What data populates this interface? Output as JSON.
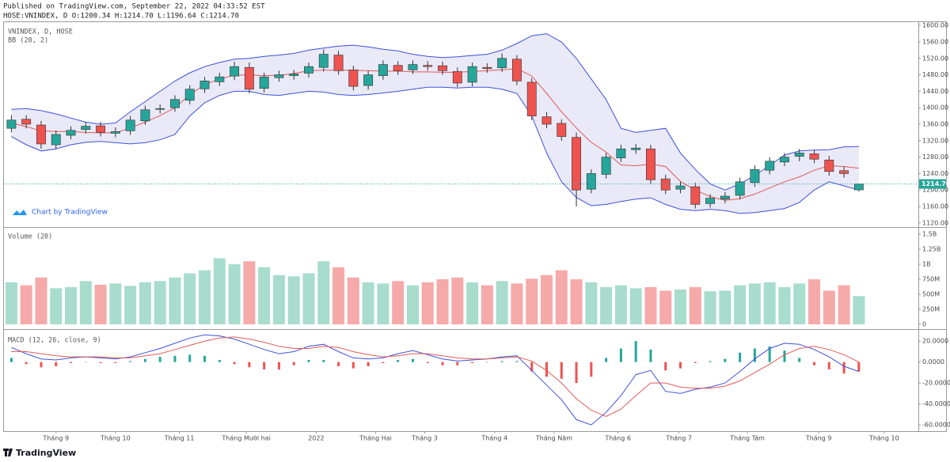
{
  "header": {
    "published": "Published on TradingView.com, September 22, 2022 04:33:52 EST",
    "symbol_line": "HOSE:VNINDEX, D O:1200.34 H:1214.70 L:1196.64 C:1214.70",
    "watermark": "Chart by TradingView",
    "footer": "TradingView"
  },
  "chart_data": [
    {
      "type": "candlestick",
      "legend": [
        "VNINDEX, D, HOSE",
        "BB (20, 2)"
      ],
      "up_color": "#26a69a",
      "down_color": "#ef5350",
      "open": [
        1350,
        1372,
        1358,
        1310,
        1333,
        1347,
        1356,
        1338,
        1344,
        1368,
        1396,
        1400,
        1418,
        1446,
        1463,
        1477,
        1498,
        1447,
        1473,
        1478,
        1484,
        1498,
        1528,
        1492,
        1454,
        1478,
        1503,
        1492,
        1503,
        1502,
        1488,
        1462,
        1498,
        1497,
        1518,
        1462,
        1378,
        1362,
        1328,
        1202,
        1238,
        1278,
        1298,
        1300,
        1227,
        1202,
        1208,
        1167,
        1178,
        1187,
        1218,
        1248,
        1268,
        1282,
        1288,
        1273,
        1247,
        1200.34
      ],
      "high": [
        1382,
        1382,
        1368,
        1345,
        1355,
        1365,
        1366,
        1352,
        1380,
        1405,
        1408,
        1430,
        1455,
        1475,
        1485,
        1512,
        1510,
        1485,
        1490,
        1492,
        1510,
        1542,
        1538,
        1502,
        1490,
        1515,
        1513,
        1515,
        1513,
        1512,
        1498,
        1510,
        1508,
        1532,
        1528,
        1472,
        1390,
        1372,
        1340,
        1250,
        1290,
        1310,
        1312,
        1310,
        1237,
        1220,
        1218,
        1190,
        1195,
        1230,
        1260,
        1280,
        1290,
        1300,
        1298,
        1283,
        1257,
        1214.7
      ],
      "low": [
        1340,
        1350,
        1300,
        1300,
        1323,
        1337,
        1330,
        1328,
        1334,
        1358,
        1386,
        1390,
        1408,
        1436,
        1453,
        1467,
        1435,
        1437,
        1463,
        1468,
        1474,
        1488,
        1480,
        1442,
        1444,
        1468,
        1480,
        1482,
        1490,
        1480,
        1450,
        1452,
        1485,
        1487,
        1455,
        1370,
        1350,
        1320,
        1160,
        1192,
        1228,
        1268,
        1288,
        1215,
        1190,
        1192,
        1155,
        1157,
        1168,
        1177,
        1208,
        1238,
        1258,
        1270,
        1265,
        1235,
        1230,
        1196.64
      ],
      "close": [
        1370,
        1360,
        1312,
        1335,
        1345,
        1355,
        1340,
        1342,
        1370,
        1395,
        1398,
        1420,
        1445,
        1465,
        1475,
        1500,
        1445,
        1475,
        1480,
        1482,
        1500,
        1530,
        1490,
        1452,
        1480,
        1505,
        1490,
        1505,
        1500,
        1490,
        1460,
        1500,
        1495,
        1520,
        1465,
        1380,
        1360,
        1330,
        1200,
        1240,
        1280,
        1300,
        1302,
        1225,
        1200,
        1210,
        1165,
        1180,
        1185,
        1220,
        1250,
        1270,
        1280,
        1290,
        1275,
        1245,
        1240,
        1214.7
      ],
      "bands": {
        "line_color": "#3f51d8",
        "middle_color": "#e05a5a",
        "fill_color": "#e3e3f5",
        "upper": [
          1396,
          1398,
          1393,
          1385,
          1375,
          1365,
          1360,
          1363,
          1390,
          1415,
          1440,
          1465,
          1485,
          1500,
          1510,
          1518,
          1520,
          1525,
          1528,
          1532,
          1540,
          1545,
          1550,
          1552,
          1548,
          1542,
          1538,
          1530,
          1525,
          1522,
          1524,
          1527,
          1530,
          1540,
          1556,
          1575,
          1580,
          1560,
          1520,
          1470,
          1420,
          1350,
          1340,
          1345,
          1350,
          1290,
          1250,
          1215,
          1200,
          1215,
          1235,
          1260,
          1285,
          1295,
          1297,
          1298,
          1305,
          1306
        ],
        "middle": [
          1363,
          1354,
          1344,
          1342,
          1342,
          1340,
          1339,
          1339,
          1351,
          1365,
          1381,
          1400,
          1432,
          1456,
          1470,
          1479,
          1480,
          1478,
          1479,
          1483,
          1490,
          1491,
          1491,
          1491,
          1490,
          1489,
          1489,
          1487,
          1487,
          1486,
          1486,
          1488,
          1490,
          1492,
          1495,
          1477,
          1435,
          1390,
          1351,
          1316,
          1292,
          1261,
          1259,
          1263,
          1257,
          1221,
          1200,
          1184,
          1175,
          1179,
          1190,
          1205,
          1220,
          1232,
          1248,
          1259,
          1257,
          1253
        ],
        "lower": [
          1330,
          1310,
          1295,
          1300,
          1310,
          1316,
          1318,
          1315,
          1312,
          1315,
          1322,
          1335,
          1380,
          1412,
          1430,
          1440,
          1440,
          1432,
          1430,
          1435,
          1440,
          1438,
          1432,
          1430,
          1432,
          1436,
          1440,
          1445,
          1450,
          1450,
          1448,
          1450,
          1450,
          1445,
          1435,
          1380,
          1290,
          1220,
          1182,
          1162,
          1165,
          1172,
          1178,
          1181,
          1165,
          1153,
          1150,
          1153,
          1150,
          1143,
          1145,
          1150,
          1155,
          1170,
          1200,
          1220,
          1210,
          1200
        ]
      },
      "last_price": {
        "value": 1214.7,
        "label": "1214.70"
      },
      "ylim": [
        1110,
        1608
      ],
      "yticks": [
        {
          "value": 1120,
          "label": "1120.00"
        },
        {
          "value": 1160,
          "label": "1160.00"
        },
        {
          "value": 1200,
          "label": "1200.00"
        },
        {
          "value": 1240,
          "label": "1240.00"
        },
        {
          "value": 1280,
          "label": "1280.00"
        },
        {
          "value": 1320,
          "label": "1320.00"
        },
        {
          "value": 1360,
          "label": "1360.00"
        },
        {
          "value": 1400,
          "label": "1400.00"
        },
        {
          "value": 1440,
          "label": "1440.00"
        },
        {
          "value": 1480,
          "label": "1480.00"
        },
        {
          "value": 1520,
          "label": "1520.00"
        },
        {
          "value": 1560,
          "label": "1560.00"
        },
        {
          "value": 1600,
          "label": "1600.00"
        }
      ]
    },
    {
      "type": "bar",
      "legend": [
        "Volume (20)"
      ],
      "up_color": "#a8dccd",
      "down_color": "#f6a9a9",
      "values": [
        700000000,
        650000000,
        780000000,
        600000000,
        620000000,
        720000000,
        660000000,
        680000000,
        640000000,
        700000000,
        720000000,
        780000000,
        850000000,
        900000000,
        1100000000,
        1000000000,
        1050000000,
        950000000,
        820000000,
        800000000,
        850000000,
        1050000000,
        950000000,
        780000000,
        700000000,
        680000000,
        720000000,
        650000000,
        700000000,
        750000000,
        780000000,
        700000000,
        650000000,
        720000000,
        680000000,
        760000000,
        820000000,
        900000000,
        750000000,
        700000000,
        620000000,
        650000000,
        600000000,
        620000000,
        560000000,
        580000000,
        620000000,
        550000000,
        560000000,
        650000000,
        680000000,
        700000000,
        620000000,
        680000000,
        750000000,
        560000000,
        650000000,
        470000000
      ],
      "ylim": [
        -66000000,
        1580000000
      ],
      "yticks": [
        0,
        {
          "value": 250000000,
          "label": "250M"
        },
        {
          "value": 500000000,
          "label": "500M"
        },
        {
          "value": 750000000,
          "label": "750M"
        },
        {
          "value": 1000000000,
          "label": "1B"
        },
        {
          "value": 1250000000,
          "label": "1.25B"
        },
        {
          "value": 1500000000,
          "label": "1.5B"
        }
      ]
    },
    {
      "type": "macd",
      "legend": [
        "MACD (12, 26, close, 9)"
      ],
      "macd_color": "#3f51d8",
      "signal_color": "#e05a5a",
      "hist_up_color": "#26a69a",
      "hist_down_color": "#ef5350",
      "macd": [
        14,
        8,
        3,
        2,
        4,
        5,
        4,
        3,
        5,
        9,
        13,
        18,
        23,
        26,
        25,
        22,
        17,
        12,
        8,
        10,
        15,
        17,
        10,
        4,
        3,
        4,
        8,
        11,
        7,
        3,
        1,
        2,
        3,
        5,
        6,
        -8,
        -22,
        -36,
        -55,
        -60,
        -48,
        -32,
        -12,
        -8,
        -28,
        -30,
        -26,
        -24,
        -20,
        -9,
        3,
        13,
        18,
        17,
        12,
        5,
        -4,
        -9
      ],
      "signal": [
        10,
        10,
        8,
        6,
        5,
        5,
        5,
        4,
        4,
        6,
        8,
        12,
        16,
        20,
        23,
        24,
        22,
        19,
        15,
        13,
        13,
        15,
        14,
        10,
        7,
        5,
        6,
        8,
        8,
        6,
        4,
        3,
        3,
        4,
        5,
        1,
        -8,
        -20,
        -35,
        -46,
        -52,
        -45,
        -32,
        -20,
        -20,
        -24,
        -25,
        -25,
        -23,
        -18,
        -10,
        -2,
        7,
        13,
        15,
        12,
        7,
        0
      ],
      "histogram": [
        4,
        -2,
        -5,
        -4,
        -1,
        0,
        -1,
        -1,
        1,
        3,
        5,
        6,
        7,
        6,
        2,
        -2,
        -5,
        -7,
        -7,
        -3,
        2,
        2,
        -4,
        -6,
        -4,
        -1,
        2,
        3,
        -1,
        -3,
        -3,
        -1,
        0,
        1,
        1,
        -9,
        -14,
        -16,
        -20,
        -14,
        4,
        13,
        20,
        12,
        -8,
        -6,
        -1,
        1,
        3,
        9,
        13,
        15,
        11,
        4,
        -3,
        -7,
        -11,
        -9
      ],
      "ylim": [
        -66,
        30
      ],
      "yticks": [
        {
          "value": 20,
          "label": "20.0000"
        },
        {
          "value": 0,
          "label": "0.0000"
        },
        {
          "value": -20,
          "label": "-20.0000"
        },
        {
          "value": -40,
          "label": "-40.0000"
        },
        {
          "value": -60,
          "label": "-60.0000"
        }
      ],
      "xlim": [
        -0.5,
        61
      ],
      "xticks": [
        {
          "value": 3,
          "label": "Tháng 9"
        },
        {
          "value": 7,
          "label": "Tháng 10"
        },
        {
          "value": 11.3,
          "label": "Tháng 11"
        },
        {
          "value": 15.8,
          "label": "Tháng Mười hai"
        },
        {
          "value": 20.5,
          "label": "2022"
        },
        {
          "value": 24.5,
          "label": "Tháng Hai"
        },
        {
          "value": 27.8,
          "label": "Tháng 3"
        },
        {
          "value": 32.5,
          "label": "Tháng 4"
        },
        {
          "value": 36.5,
          "label": "Tháng Năm"
        },
        {
          "value": 40.8,
          "label": "Tháng 6"
        },
        {
          "value": 44.9,
          "label": "Tháng 7"
        },
        {
          "value": 49.5,
          "label": "Tháng Tám"
        },
        {
          "value": 54.3,
          "label": "Tháng 9"
        },
        {
          "value": 58.7,
          "label": "Tháng 10"
        }
      ]
    }
  ]
}
